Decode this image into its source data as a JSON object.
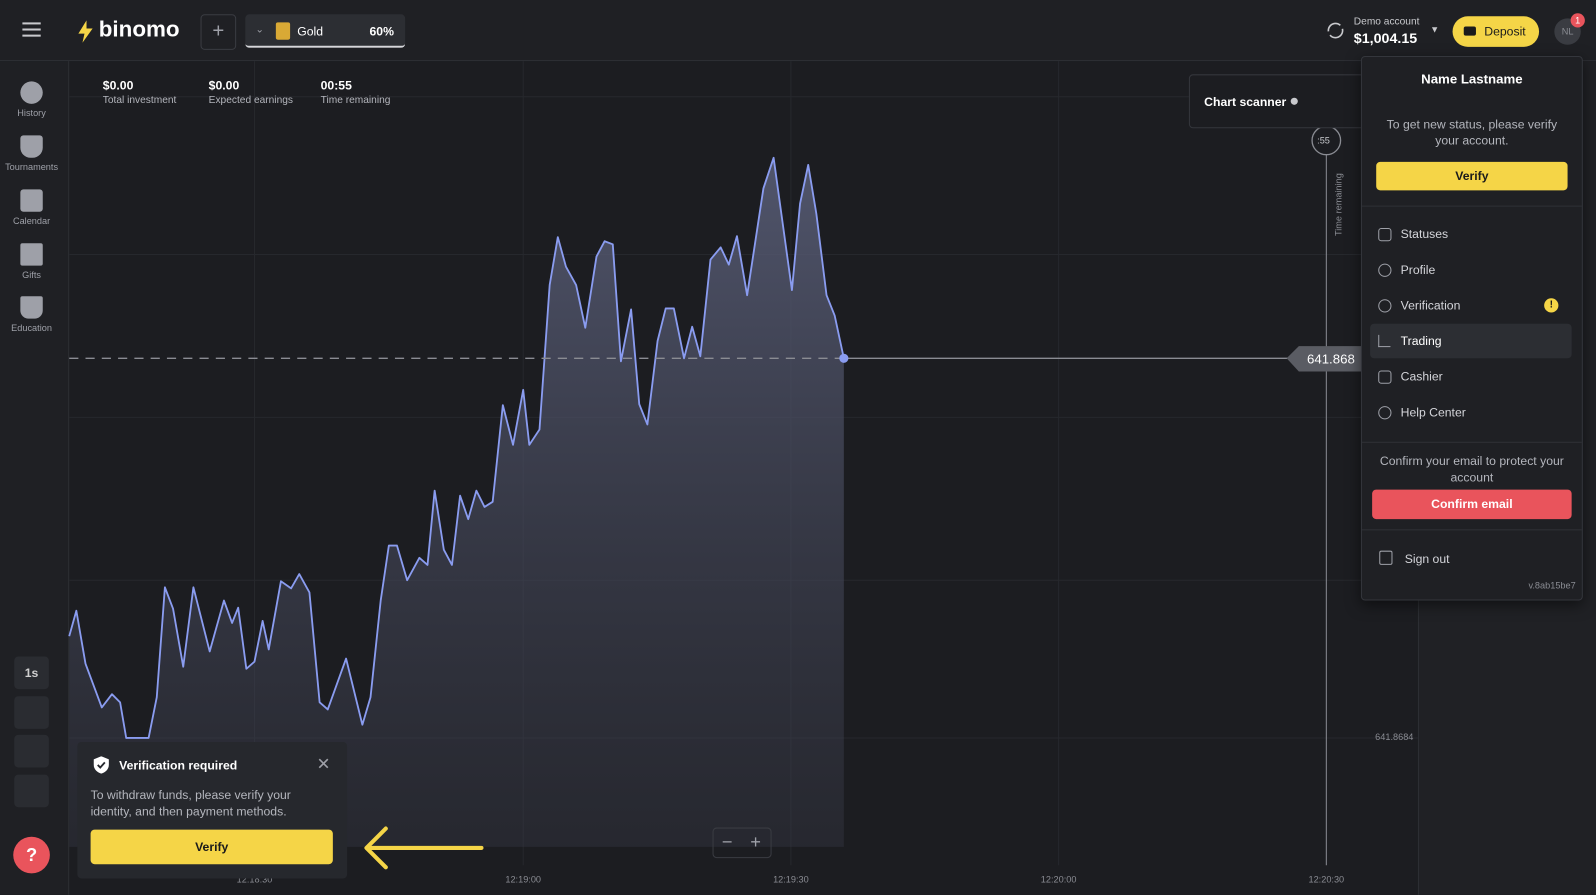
{
  "header": {
    "logo": "binomo",
    "asset": "Gold",
    "payout": "60%",
    "account_type": "Demo account",
    "balance": "$1,004.15",
    "deposit": "Deposit",
    "avatar": "NL",
    "badge": "1"
  },
  "sidebar": {
    "items": [
      "History",
      "Tournaments",
      "Calendar",
      "Gifts",
      "Education"
    ],
    "timeframe": "1s"
  },
  "stats": [
    {
      "value": "$0.00",
      "label": "Total investment"
    },
    {
      "value": "$0.00",
      "label": "Expected earnings"
    },
    {
      "value": "00:55",
      "label": "Time remaining"
    }
  ],
  "chart": {
    "scanner": "Chart scanner",
    "timer": ":55",
    "time_remaining": "Time remaining",
    "current_price": "641.868",
    "price_tick": "641.8684",
    "time_ticks": [
      "12:18:30",
      "12:19:00",
      "12:19:30",
      "12:20:00",
      "12:20:30"
    ]
  },
  "menu": {
    "name": "Name Lastname",
    "status_text": "To get new status, please verify your account.",
    "verify": "Verify",
    "items": [
      "Statuses",
      "Profile",
      "Verification",
      "Trading",
      "Cashier",
      "Help Center"
    ],
    "email_text": "Confirm your email to protect your account",
    "confirm": "Confirm email",
    "sign_out": "Sign out",
    "version": "v.8ab15be7"
  },
  "toast": {
    "title": "Verification required",
    "text": "To withdraw funds, please verify your identity, and then payment methods.",
    "button": "Verify"
  }
}
